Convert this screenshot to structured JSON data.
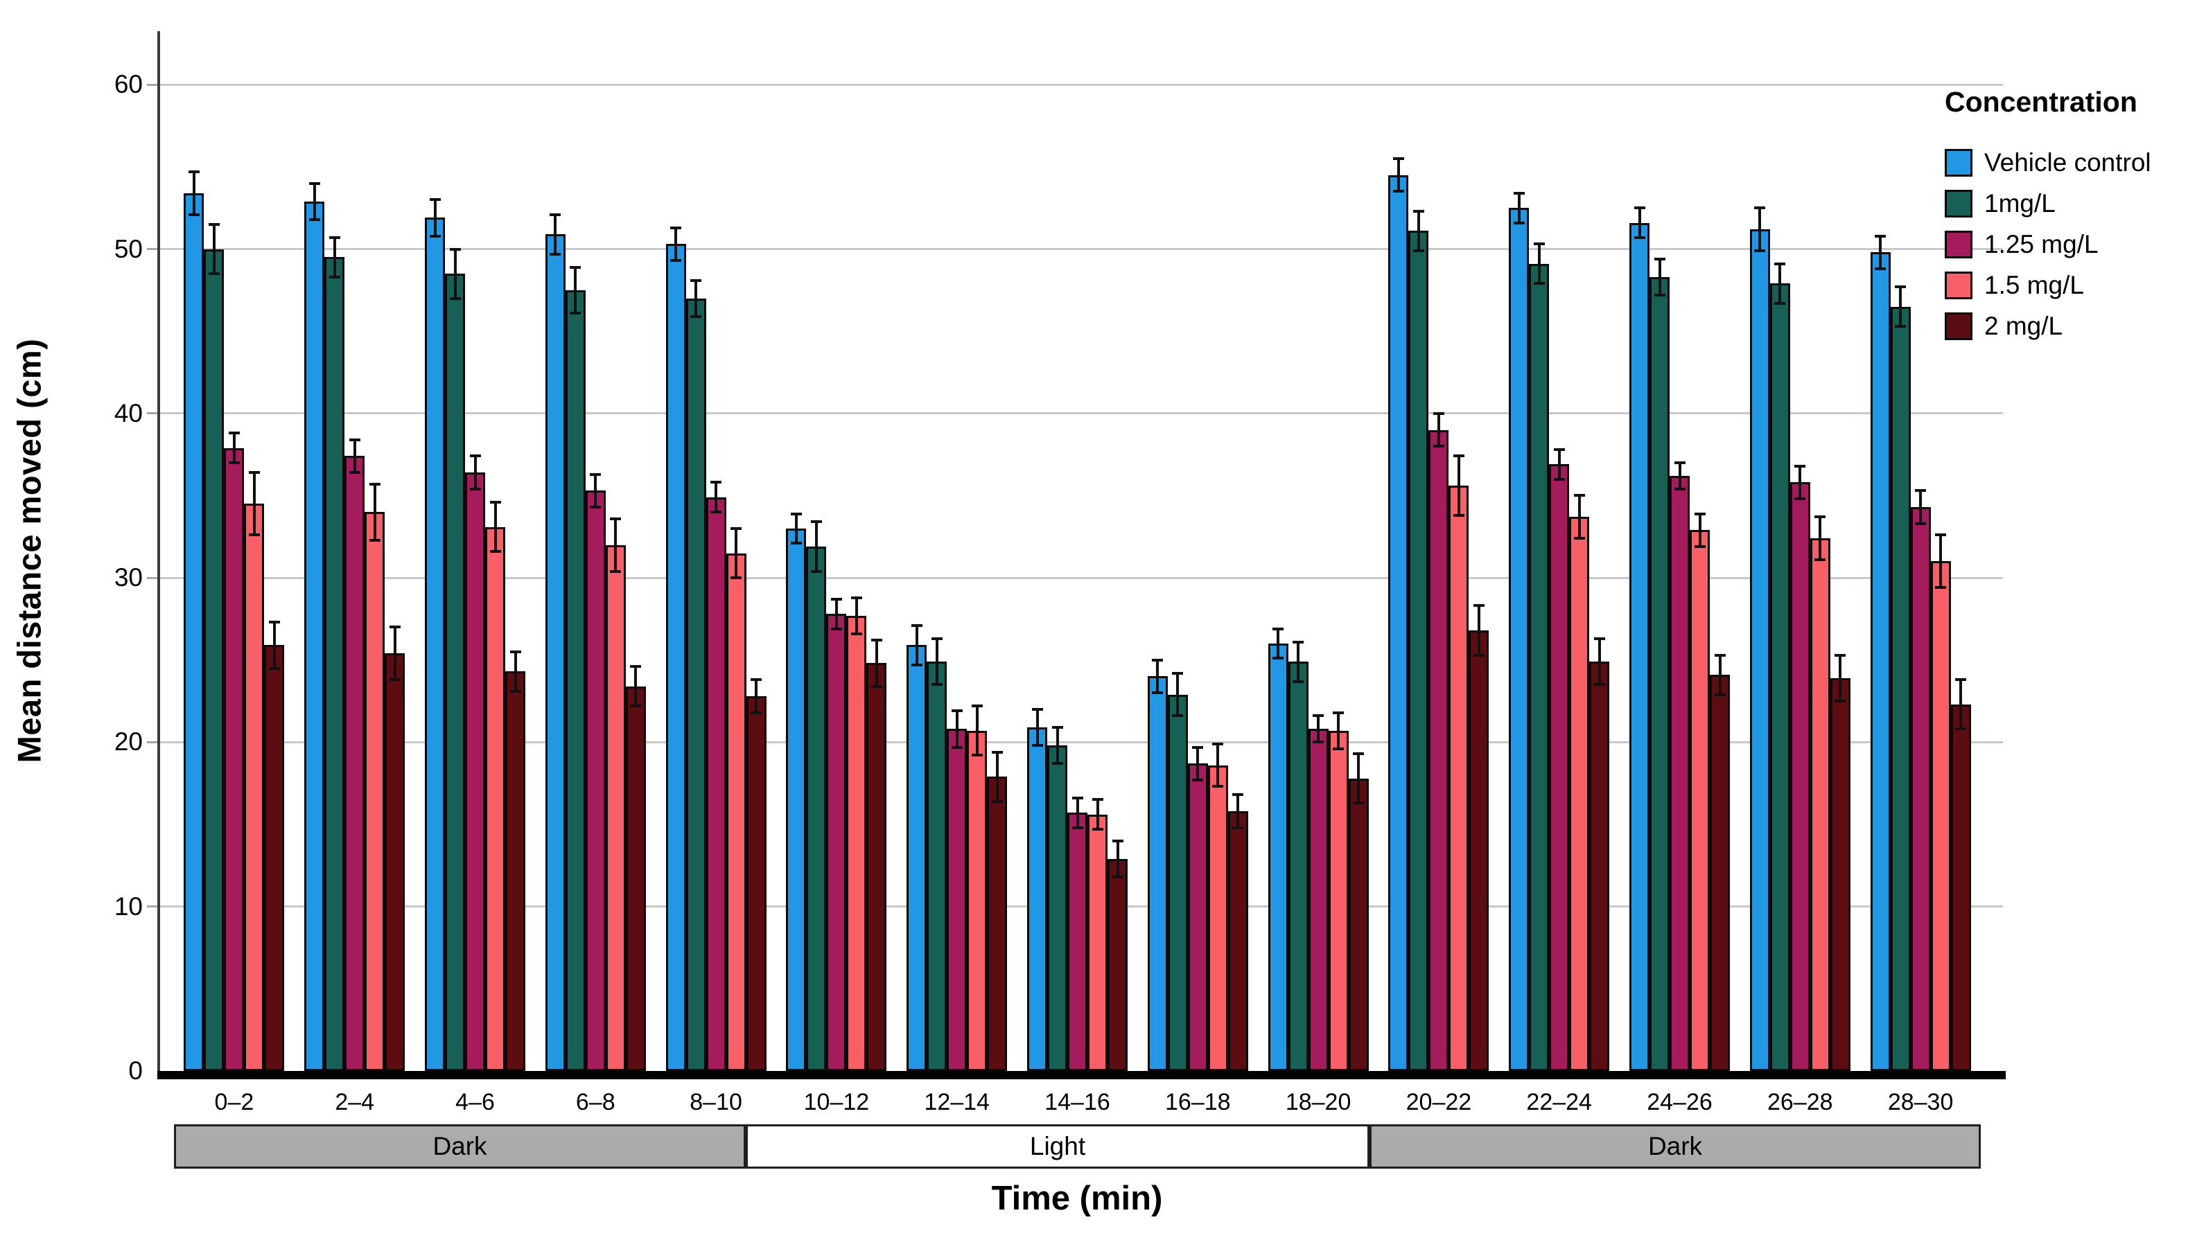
{
  "figure": {
    "y_axis_title": "Mean distance moved (cm)",
    "x_axis_title": "Time (min)"
  },
  "chart_data": {
    "type": "bar",
    "title": "",
    "xlabel": "Time (min)",
    "ylabel": "Mean distance moved (cm)",
    "ylim": [
      0,
      63
    ],
    "yticks": [
      0,
      10,
      20,
      30,
      40,
      50,
      60
    ],
    "grid": true,
    "legend_position": "top-right",
    "legend_title": "Concentration",
    "categories": [
      "0–2",
      "2–4",
      "4–6",
      "6–8",
      "8–10",
      "10–12",
      "12–14",
      "14–16",
      "16–18",
      "18–20",
      "20–22",
      "22–24",
      "24–26",
      "26–28",
      "28–30"
    ],
    "series": [
      {
        "name": "Vehicle control",
        "color": "#2297E4",
        "values": [
          53.4,
          52.9,
          51.9,
          50.9,
          50.3,
          33.0,
          25.9,
          20.9,
          24.0,
          26.0,
          54.5,
          52.5,
          51.6,
          51.2,
          49.8
        ],
        "errors": [
          1.3,
          1.1,
          1.1,
          1.2,
          1.0,
          0.9,
          1.2,
          1.1,
          1.0,
          0.9,
          1.0,
          0.9,
          0.9,
          1.3,
          1.0
        ]
      },
      {
        "name": "1mg/L",
        "color": "#166055",
        "values": [
          50.0,
          49.5,
          48.5,
          47.5,
          47.0,
          31.9,
          24.9,
          19.8,
          22.9,
          24.9,
          51.1,
          49.1,
          48.3,
          47.9,
          46.5
        ],
        "errors": [
          1.5,
          1.2,
          1.5,
          1.4,
          1.1,
          1.5,
          1.4,
          1.1,
          1.3,
          1.2,
          1.2,
          1.2,
          1.1,
          1.2,
          1.2
        ]
      },
      {
        "name": "1.25 mg/L",
        "color": "#A41C5C",
        "values": [
          37.9,
          37.4,
          36.4,
          35.3,
          34.9,
          27.8,
          20.8,
          15.7,
          18.7,
          20.8,
          39.0,
          36.9,
          36.2,
          35.8,
          34.3
        ],
        "errors": [
          0.9,
          1.0,
          1.0,
          1.0,
          0.9,
          0.9,
          1.1,
          0.9,
          1.0,
          0.8,
          1.0,
          0.9,
          0.8,
          1.0,
          1.0
        ]
      },
      {
        "name": "1.5 mg/L",
        "color": "#F95F66",
        "values": [
          34.5,
          34.0,
          33.1,
          32.0,
          31.5,
          27.7,
          20.7,
          15.6,
          18.6,
          20.7,
          35.6,
          33.7,
          32.9,
          32.4,
          31.0
        ],
        "errors": [
          1.9,
          1.7,
          1.5,
          1.6,
          1.5,
          1.1,
          1.5,
          0.9,
          1.3,
          1.1,
          1.8,
          1.3,
          1.0,
          1.3,
          1.6
        ]
      },
      {
        "name": "2 mg/L",
        "color": "#5C0D12",
        "values": [
          25.9,
          25.4,
          24.3,
          23.4,
          22.8,
          24.8,
          17.9,
          12.9,
          15.8,
          17.8,
          26.8,
          24.9,
          24.1,
          23.9,
          22.3
        ],
        "errors": [
          1.4,
          1.6,
          1.2,
          1.2,
          1.0,
          1.4,
          1.5,
          1.1,
          1.0,
          1.5,
          1.5,
          1.4,
          1.2,
          1.4,
          1.5
        ]
      }
    ],
    "phases": [
      {
        "label": "Dark",
        "start_group": 0,
        "end_group": 4,
        "fill": "#ABABAB"
      },
      {
        "label": "Light",
        "start_group": 5,
        "end_group": 9,
        "fill": "#FFFFFF"
      },
      {
        "label": "Dark",
        "start_group": 10,
        "end_group": 14,
        "fill": "#ABABAB"
      }
    ]
  }
}
